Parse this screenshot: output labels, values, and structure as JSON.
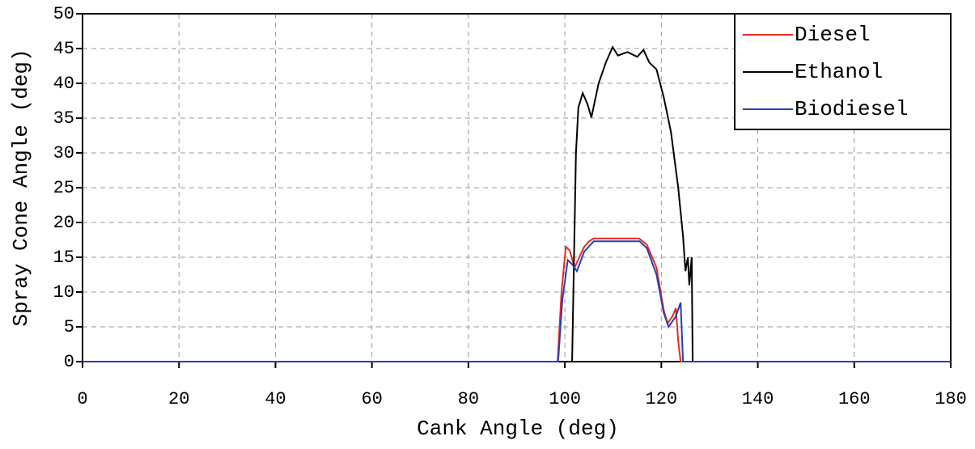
{
  "chart_data": {
    "type": "line",
    "x_label": "Cank Angle (deg)",
    "y_label": "Spray Cone Angle (deg)",
    "xlim": [
      0,
      180
    ],
    "xticks": [
      0,
      20,
      40,
      60,
      80,
      100,
      120,
      140,
      160,
      180
    ],
    "ylim": [
      0,
      50
    ],
    "yticks": [
      0,
      5,
      10,
      15,
      20,
      25,
      30,
      35,
      40,
      45,
      50
    ],
    "grid": true,
    "legend": "upper right",
    "series": [
      {
        "name": "Diesel",
        "color": "#e8281e",
        "x": [
          0,
          98.5,
          99.3,
          100.2,
          101,
          102,
          103,
          104,
          105,
          106,
          110,
          115.4,
          117,
          119,
          120.5,
          121.3,
          122.3,
          123,
          123.5,
          124,
          180
        ],
        "values": [
          0,
          0,
          10,
          16.5,
          16,
          13.5,
          15,
          16.5,
          17.3,
          17.7,
          17.7,
          17.7,
          16.8,
          13.5,
          7.4,
          5.5,
          6.5,
          7.7,
          3,
          0,
          0
        ]
      },
      {
        "name": "Ethanol",
        "color": "#000000",
        "x": [
          0,
          101.5,
          102.3,
          102.8,
          103.7,
          104.7,
          105.5,
          107,
          108.5,
          109.9,
          111,
          113,
          115,
          116.3,
          117.5,
          119,
          120.5,
          122,
          123.5,
          124.5,
          125,
          125.5,
          125.8,
          126.3,
          126.5,
          180
        ],
        "values": [
          0,
          0,
          30,
          36.5,
          38.6,
          37,
          35.1,
          40,
          43,
          45.2,
          44,
          44.5,
          43.8,
          44.8,
          43,
          42,
          38,
          33,
          25,
          18,
          13,
          15,
          11,
          15,
          0,
          0
        ]
      },
      {
        "name": "Biodiesel",
        "color": "#2a3fb0",
        "x": [
          0,
          98.6,
          99.5,
          100.6,
          101.5,
          102.5,
          104,
          106,
          110,
          115.5,
          117,
          119,
          120.5,
          121.5,
          123,
          124,
          124.5,
          180
        ],
        "values": [
          0,
          0,
          9,
          14.6,
          14,
          13,
          15.8,
          17.3,
          17.3,
          17.3,
          16.3,
          12.5,
          7,
          5,
          6.5,
          8.5,
          0,
          0
        ]
      }
    ]
  }
}
